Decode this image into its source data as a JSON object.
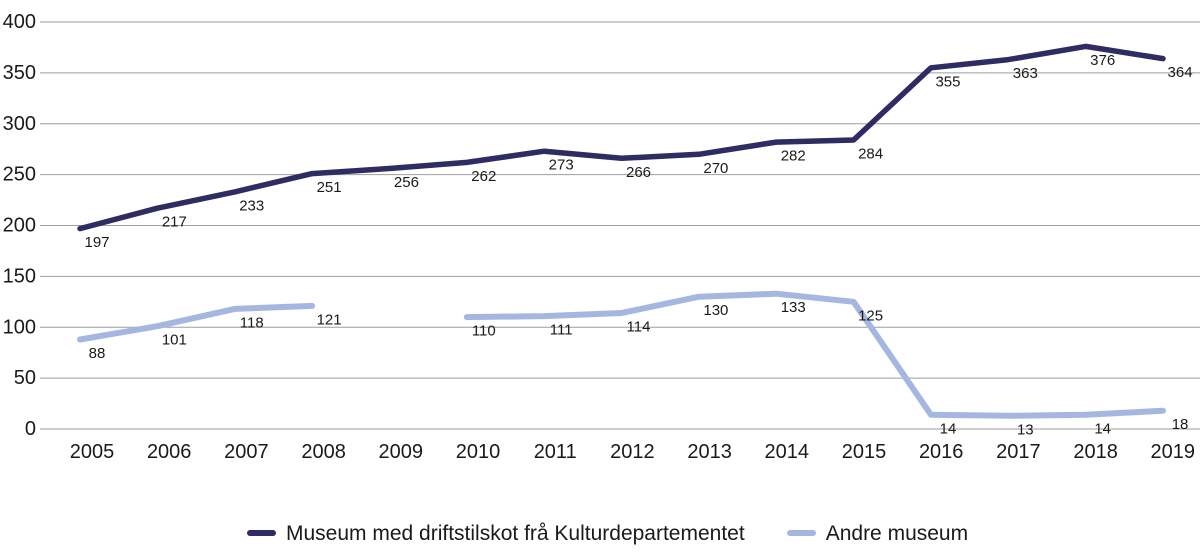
{
  "chart_data": {
    "type": "line",
    "title": "",
    "xlabel": "",
    "ylabel": "",
    "x": [
      "2005",
      "2006",
      "2007",
      "2008",
      "2009",
      "2010",
      "2011",
      "2012",
      "2013",
      "2014",
      "2015",
      "2016",
      "2017",
      "2018",
      "2019"
    ],
    "series": [
      {
        "name": "Museum med driftstilskot frå Kulturdepartementet",
        "color": "#2E2C62",
        "stroke_width": 5.5,
        "values": [
          197,
          217,
          233,
          251,
          256,
          262,
          273,
          266,
          270,
          282,
          284,
          355,
          363,
          376,
          364
        ]
      },
      {
        "name": "Andre museum",
        "color": "#A5B7E1",
        "stroke_width": 6,
        "values": [
          88,
          101,
          118,
          121,
          null,
          110,
          111,
          114,
          130,
          133,
          125,
          14,
          13,
          14,
          18
        ]
      }
    ],
    "ylim": [
      0,
      400
    ],
    "yticks": [
      0,
      50,
      100,
      150,
      200,
      250,
      300,
      350,
      400
    ],
    "grid": true,
    "grid_color": "#9E9E9E",
    "tick_label_color": "#1a1a1a",
    "data_label_color": "#1a1a1a",
    "data_labels": true,
    "legend_position": "bottom"
  }
}
